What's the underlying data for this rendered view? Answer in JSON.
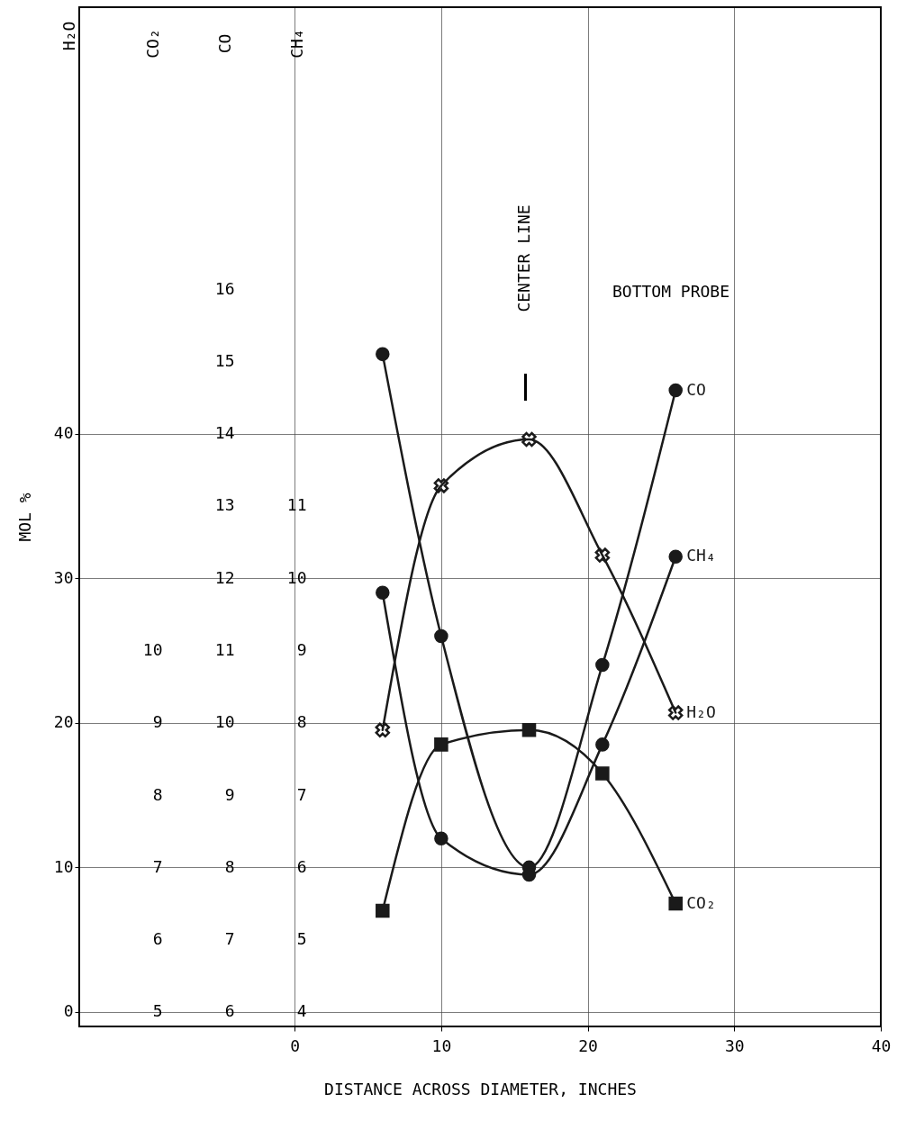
{
  "chart_data": [
    {
      "type": "line",
      "ylabel": "MOL %",
      "xlabel": "DISTANCE ACROSS DIAMETER, INCHES",
      "x": [
        6,
        10,
        16,
        21,
        26
      ],
      "xlim": [
        -14.7,
        40
      ],
      "xticks": [
        0,
        10,
        20,
        30,
        40
      ],
      "ylim": [
        -1,
        69.5
      ],
      "yticks": [
        0,
        10,
        20,
        30,
        40
      ],
      "y2label": "CO₂",
      "y2lim": [
        4.8,
        18.9
      ],
      "y2ticks": [
        5,
        6,
        7,
        8,
        9,
        10
      ],
      "y3label": "CO",
      "y3lim": [
        5.8,
        19.9
      ],
      "y3ticks": [
        6,
        7,
        8,
        9,
        10,
        11,
        12,
        13,
        14,
        15,
        16
      ],
      "grid": true,
      "series": [
        {
          "name": "H₂O",
          "color": "#1a1a1a",
          "marker": "cross",
          "values": [
            19.5,
            36.4,
            39.6,
            31.6,
            20.7
          ]
        },
        {
          "name": "CO₂",
          "color": "#1a1a1a",
          "marker": "square",
          "axis": "y2",
          "values": [
            6.4,
            8.7,
            8.9,
            8.3,
            6.5
          ]
        },
        {
          "name": "CO",
          "color": "#1a1a1a",
          "marker": "circle",
          "axis": "y3",
          "values": [
            15.1,
            11.2,
            8.0,
            10.8,
            14.6
          ]
        }
      ],
      "annotations": [
        "H₂O",
        "BOTTOM PROBE",
        "CENTER LINE"
      ]
    },
    {
      "type": "line",
      "ylabel": "CH₄",
      "x": [
        6,
        10,
        16,
        21,
        26
      ],
      "xlim": [
        -14.7,
        40
      ],
      "ylim": [
        3.8,
        17.9
      ],
      "yticks": [
        4,
        5,
        6,
        7,
        8,
        9,
        10,
        11
      ],
      "tick_labels": "y",
      "series": [
        {
          "name": "CH₄",
          "color": "#1a1a1a",
          "marker": "circle",
          "values": [
            9.8,
            6.4,
            5.9,
            7.7,
            10.3
          ]
        }
      ]
    }
  ]
}
